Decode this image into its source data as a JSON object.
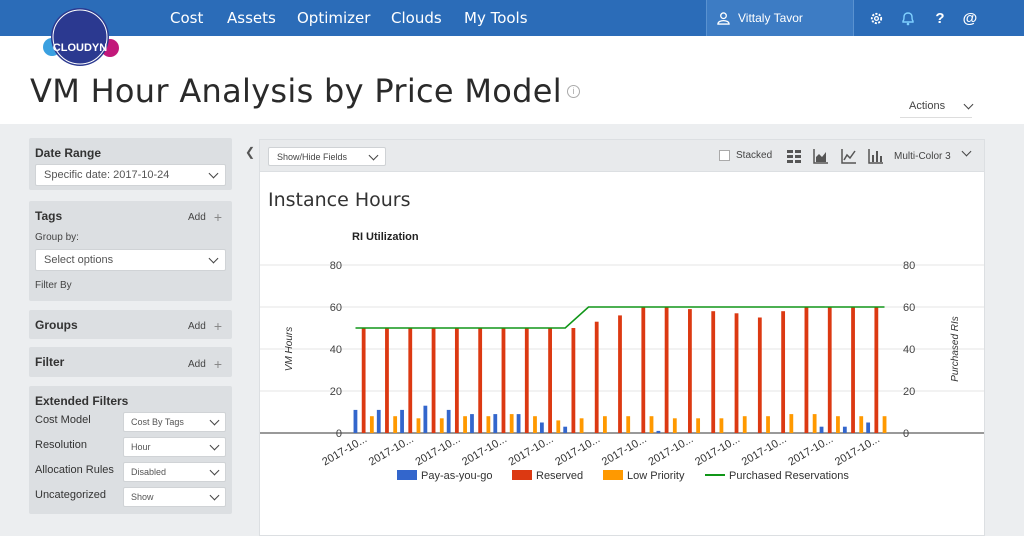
{
  "brand": {
    "logo_text": "CLOUDYN"
  },
  "nav": {
    "items": [
      "Cost",
      "Assets",
      "Optimizer",
      "Clouds",
      "My Tools"
    ],
    "user": "Vittaly Tavor"
  },
  "page": {
    "title": "VM Hour Analysis by Price Model",
    "actions_label": "Actions"
  },
  "sidebar": {
    "date_range": {
      "header": "Date Range",
      "value": "Specific date:  2017-10-24"
    },
    "tags": {
      "header": "Tags",
      "add_label": "Add",
      "group_by_label": "Group by:",
      "select_placeholder": "Select options",
      "filter_by_label": "Filter By"
    },
    "groups": {
      "header": "Groups",
      "add_label": "Add"
    },
    "filter": {
      "header": "Filter",
      "add_label": "Add"
    },
    "extended": {
      "header": "Extended Filters",
      "rows": [
        {
          "label": "Cost Model",
          "value": "Cost By Tags"
        },
        {
          "label": "Resolution",
          "value": "Hour"
        },
        {
          "label": "Allocation Rules",
          "value": "Disabled"
        },
        {
          "label": "Uncategorized",
          "value": "Show"
        }
      ]
    }
  },
  "toolbar": {
    "show_hide_label": "Show/Hide Fields",
    "stacked_label": "Stacked",
    "color_scheme": "Multi-Color 3"
  },
  "card": {
    "title": "Instance Hours"
  },
  "chart_data": {
    "type": "bar",
    "title": "RI Utilization",
    "ylabel": "VM Hours",
    "y2label": "Purchased RIs",
    "ylim": [
      0,
      80
    ],
    "y2lim": [
      0,
      80
    ],
    "yticks": [
      0,
      20,
      40,
      60,
      80
    ],
    "x_tick_label": "2017-10...",
    "categories": [
      "1",
      "2",
      "3",
      "4",
      "5",
      "6",
      "7",
      "8",
      "9",
      "10",
      "11",
      "12",
      "13",
      "14",
      "15",
      "16",
      "17",
      "18",
      "19",
      "20",
      "21",
      "22",
      "23"
    ],
    "series": [
      {
        "name": "Pay-as-you-go",
        "type": "bar",
        "color": "#3366cc",
        "values": [
          11,
          11,
          11,
          13,
          11,
          9,
          9,
          9,
          5,
          3,
          0,
          0,
          0,
          1,
          0,
          0,
          0,
          0,
          0,
          0,
          3,
          3,
          5
        ]
      },
      {
        "name": "Reserved",
        "type": "bar",
        "color": "#dc3912",
        "values": [
          50,
          50,
          50,
          50,
          50,
          50,
          50,
          50,
          50,
          50,
          53,
          56,
          60,
          60,
          59,
          58,
          57,
          55,
          58,
          60,
          60,
          60,
          60
        ]
      },
      {
        "name": "Low Priority",
        "type": "bar",
        "color": "#ff9900",
        "values": [
          8,
          8,
          7,
          7,
          8,
          8,
          9,
          8,
          6,
          7,
          8,
          8,
          8,
          7,
          7,
          7,
          8,
          8,
          9,
          9,
          8,
          8,
          8
        ]
      },
      {
        "name": "Purchased Reservations",
        "type": "line",
        "color": "#109618",
        "values": [
          50,
          50,
          50,
          50,
          50,
          50,
          50,
          50,
          50,
          50,
          60,
          60,
          60,
          60,
          60,
          60,
          60,
          60,
          60,
          60,
          60,
          60,
          60
        ]
      }
    ]
  }
}
